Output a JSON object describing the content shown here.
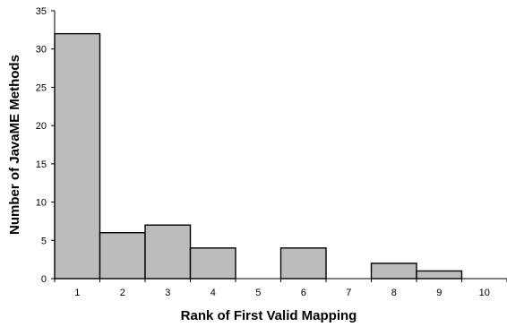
{
  "chart_data": {
    "type": "bar",
    "title": "",
    "xlabel": "Rank of First Valid Mapping",
    "ylabel": "Number of JavaME Methods",
    "categories": [
      "1",
      "2",
      "3",
      "4",
      "5",
      "6",
      "7",
      "8",
      "9",
      "10"
    ],
    "values": [
      32,
      6,
      7,
      4,
      0,
      4,
      0,
      2,
      1,
      0
    ],
    "ylim": [
      0,
      35
    ],
    "yticks": [
      0,
      5,
      10,
      15,
      20,
      25,
      30,
      35
    ],
    "grid": false,
    "legend": "none",
    "bar_color": "#bcbcbc",
    "bar_edge_color": "#000000"
  }
}
